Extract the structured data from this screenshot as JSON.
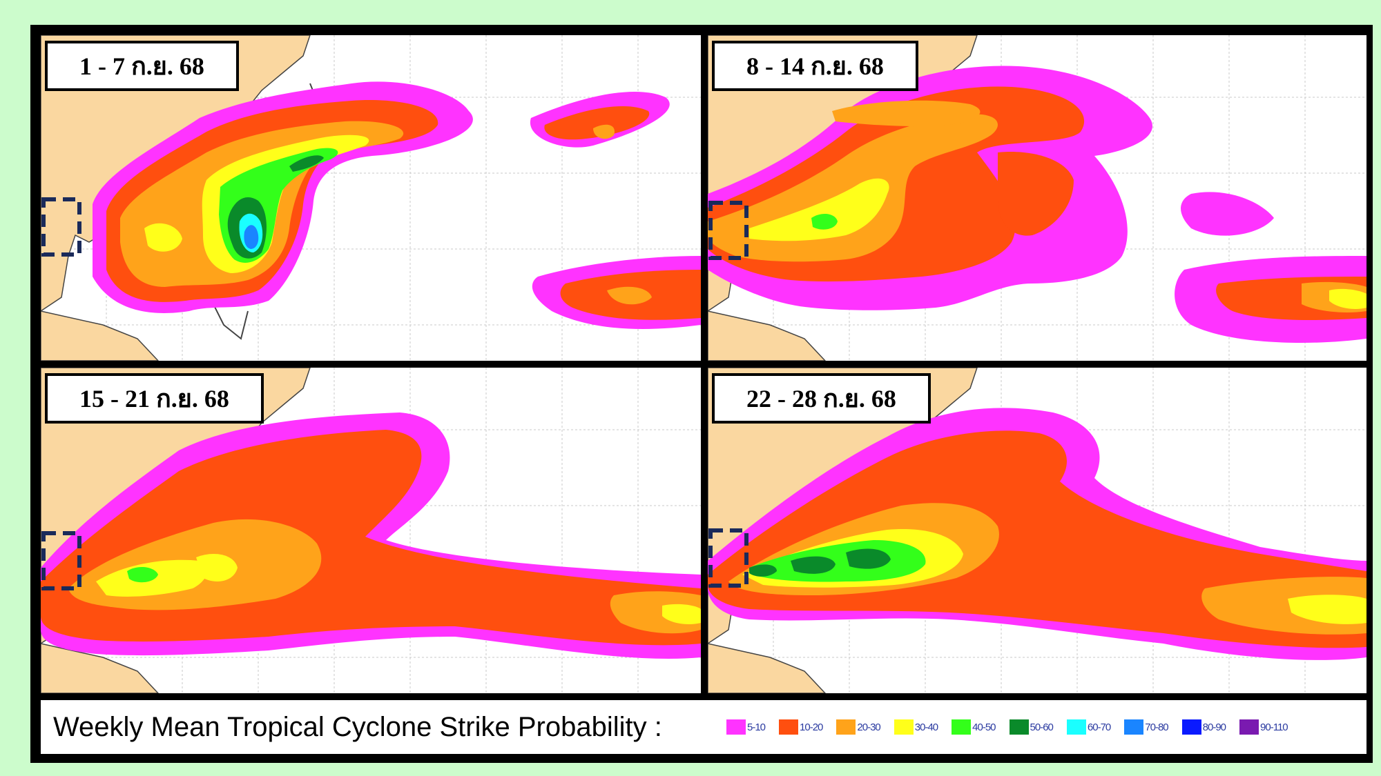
{
  "panels": [
    {
      "date_label": "1 - 7 ก.ย. 68"
    },
    {
      "date_label": "8 - 14 ก.ย. 68"
    },
    {
      "date_label": "15 - 21 ก.ย. 68"
    },
    {
      "date_label": "22 - 28 ก.ย. 68"
    }
  ],
  "legend": {
    "title": "Weekly Mean Tropical Cyclone Strike Probability :",
    "items": [
      {
        "label": "5-10",
        "color": "#ff33ff"
      },
      {
        "label": "10-20",
        "color": "#ff4f0f"
      },
      {
        "label": "20-30",
        "color": "#ffa31a"
      },
      {
        "label": "30-40",
        "color": "#ffff1a"
      },
      {
        "label": "40-50",
        "color": "#33ff1a"
      },
      {
        "label": "50-60",
        "color": "#0a8a2a"
      },
      {
        "label": "60-70",
        "color": "#1affff"
      },
      {
        "label": "70-80",
        "color": "#1a85ff"
      },
      {
        "label": "80-90",
        "color": "#0a1aff"
      },
      {
        "label": "90-110",
        "color": "#7a1ab0"
      }
    ]
  },
  "colors": {
    "land": "#fad7a0",
    "ocean": "#ffffff",
    "background": "#ccfccc",
    "highlight_box": "#1a2a5a"
  }
}
